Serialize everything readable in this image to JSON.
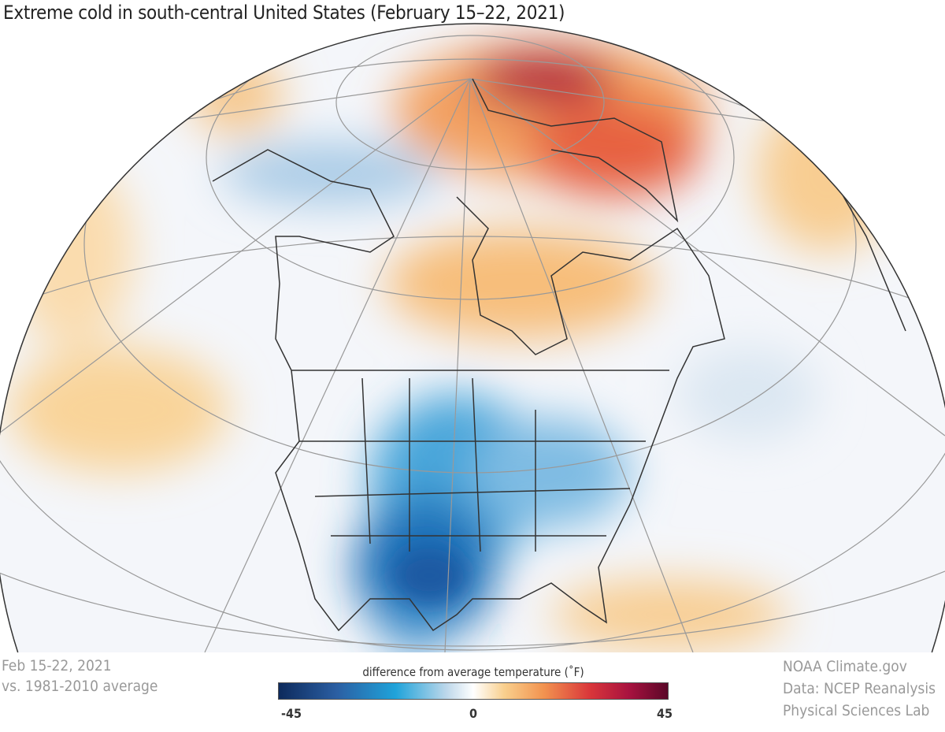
{
  "title": "Extreme cold in south-central United States (February 15–22, 2021)",
  "period": {
    "line1": "Feb 15-22, 2021",
    "line2": "vs. 1981-2010 average"
  },
  "credits": {
    "line1": "NOAA Climate.gov",
    "line2": "Data: NCEP Reanalysis",
    "line3": "Physical Sciences Lab"
  },
  "legend": {
    "title": "difference from average temperature (˚F)",
    "min_label": "-45",
    "mid_label": "0",
    "max_label": "45",
    "range": [
      -45,
      45
    ],
    "colors": [
      "#0d2a5c",
      "#2b5fa3",
      "#1fa3da",
      "#bcd7ea",
      "#ffffff",
      "#f9cf8d",
      "#f29450",
      "#d9363a",
      "#a8123f",
      "#5a0728"
    ]
  },
  "map": {
    "projection": "orthographic",
    "region": "North America and Arctic",
    "anomalies": [
      {
        "region": "south-central United States (Texas, Oklahoma)",
        "sign": "cold",
        "approx_f": -30
      },
      {
        "region": "central plains / Midwest",
        "sign": "cold",
        "approx_f": -20
      },
      {
        "region": "northern Greenland / Arctic",
        "sign": "warm",
        "approx_f": 30
      },
      {
        "region": "Hudson Bay / Quebec",
        "sign": "warm",
        "approx_f": 10
      }
    ]
  }
}
